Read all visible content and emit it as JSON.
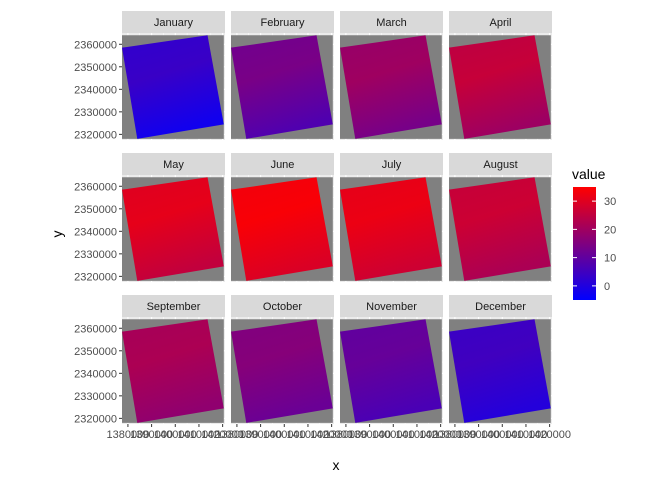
{
  "chart_data": {
    "type": "heatmap",
    "title": "",
    "xlabel": "x",
    "ylabel": "y",
    "facet_labels": [
      "January",
      "February",
      "March",
      "April",
      "May",
      "June",
      "July",
      "August",
      "September",
      "October",
      "November",
      "December"
    ],
    "x_ticks": [
      1380000,
      1390000,
      1400000,
      1410000,
      1420000
    ],
    "x_tick_labels": [
      "1380000",
      "1390000",
      "1400000",
      "1410000",
      "1420000"
    ],
    "y_ticks": [
      2320000,
      2330000,
      2340000,
      2350000,
      2360000
    ],
    "y_tick_labels": [
      "2320000",
      "2330000",
      "2340000",
      "2350000",
      "2360000"
    ],
    "xlim": [
      1377500,
      1421000
    ],
    "ylim": [
      2317500,
      2365000
    ],
    "raster_extent": {
      "x": [
        1377500,
        1420500
      ],
      "y": [
        2318000,
        2364000
      ]
    },
    "grid": true,
    "panel_background_color": "#ebebeb",
    "na_color": "#808080",
    "legend": {
      "title": "value",
      "position": "right",
      "breaks": [
        0,
        10,
        20,
        30
      ],
      "break_labels": [
        "0",
        "10",
        "20",
        "30"
      ],
      "limits": [
        -5,
        35
      ],
      "colors": {
        "low": "#0000ff",
        "high": "#ff0000"
      }
    },
    "series": [
      {
        "name": "January",
        "values": [
          3.0,
          0.3
        ]
      },
      {
        "name": "February",
        "values": [
          13.0,
          0.3
        ]
      },
      {
        "name": "March",
        "values": [
          19.0,
          0.3
        ]
      },
      {
        "name": "April",
        "values": [
          25.0,
          0.3
        ]
      },
      {
        "name": "May",
        "values": [
          30.0,
          0.2
        ]
      },
      {
        "name": "June",
        "values": [
          33.0,
          0.1
        ]
      },
      {
        "name": "July",
        "values": [
          31.0,
          0.1
        ]
      },
      {
        "name": "August",
        "values": [
          26.0,
          0.15
        ]
      },
      {
        "name": "September",
        "values": [
          21.0,
          0.05
        ]
      },
      {
        "name": "October",
        "values": [
          15.0,
          0.05
        ]
      },
      {
        "name": "November",
        "values": [
          10.0,
          0.05
        ]
      },
      {
        "name": "December",
        "values": [
          4.0,
          0.05
        ]
      }
    ]
  }
}
